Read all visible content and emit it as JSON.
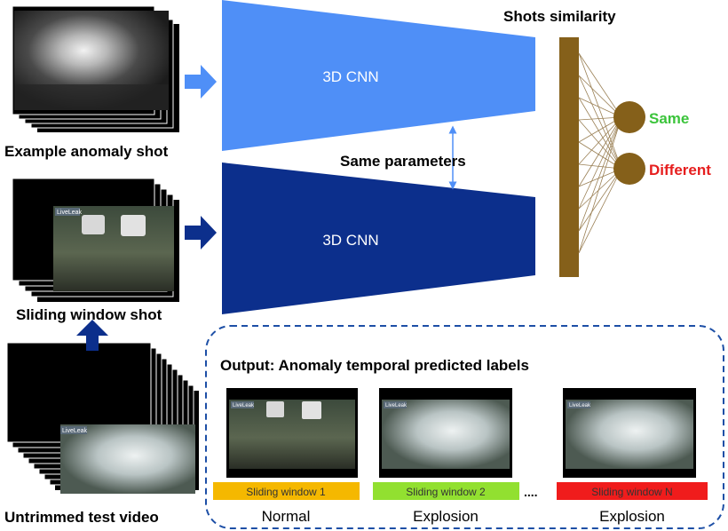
{
  "labels": {
    "example_anomaly_shot": "Example anomaly shot",
    "sliding_window_shot": "Sliding window shot",
    "untrimmed_test_video": "Untrimmed test video",
    "cnn_top": "3D CNN",
    "cnn_bottom": "3D CNN",
    "same_parameters": "Same parameters",
    "shots_similarity": "Shots similarity",
    "same": "Same",
    "different": "Different",
    "output_title": "Output: Anomaly temporal predicted labels",
    "ellipsis": "....",
    "livleak": "LiveLeak"
  },
  "windows": [
    {
      "bar_label": "Sliding window 1",
      "prediction": "Normal",
      "bar_color": "#f5b800"
    },
    {
      "bar_label": "Sliding window 2",
      "prediction": "Explosion",
      "bar_color": "#92e030"
    },
    {
      "bar_label": "Sliding window N",
      "prediction": "Explosion",
      "bar_color": "#f01c1c"
    }
  ],
  "colors": {
    "cnn_top": "#4f8ff7",
    "cnn_bottom": "#0c2f8c",
    "arrow": "#1d4fa6",
    "similarity_bar": "#85601a",
    "node": "#85601a",
    "same": "#3bc43b",
    "different": "#e61e1e",
    "output_border": "#1d4fa6"
  }
}
